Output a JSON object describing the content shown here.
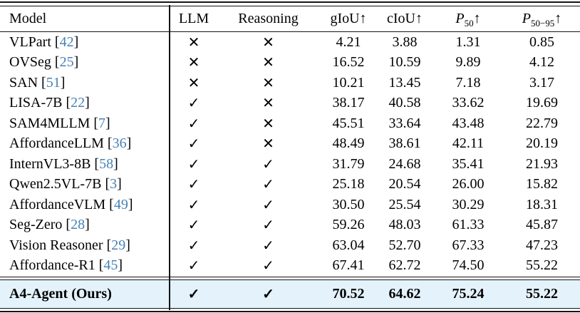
{
  "table": {
    "columns": [
      {
        "key": "model",
        "label": "Model"
      },
      {
        "key": "llm",
        "label": "LLM"
      },
      {
        "key": "reasoning",
        "label": "Reasoning"
      },
      {
        "key": "giou",
        "label": "gIoU",
        "arrow": "↑"
      },
      {
        "key": "ciou",
        "label": "cIoU",
        "arrow": "↑"
      },
      {
        "key": "p50",
        "label": "P",
        "sub": "50",
        "italic": true,
        "arrow": "↑"
      },
      {
        "key": "p5095",
        "label": "P",
        "sub": "50−95",
        "italic": true,
        "arrow": "↑"
      }
    ],
    "icons": {
      "check": "✓",
      "cross": "✕"
    },
    "colors": {
      "citation": "#4682b4",
      "highlight": "#e4f2fb",
      "rule": "#141414"
    },
    "rows": [
      {
        "model": "VLPart",
        "cite": "42",
        "llm": "cross",
        "reasoning": "cross",
        "giou": "4.21",
        "ciou": "3.88",
        "p50": "1.31",
        "p5095": "0.85"
      },
      {
        "model": "OVSeg",
        "cite": "25",
        "llm": "cross",
        "reasoning": "cross",
        "giou": "16.52",
        "ciou": "10.59",
        "p50": "9.89",
        "p5095": "4.12"
      },
      {
        "model": "SAN",
        "cite": "51",
        "llm": "cross",
        "reasoning": "cross",
        "giou": "10.21",
        "ciou": "13.45",
        "p50": "7.18",
        "p5095": "3.17"
      },
      {
        "model": "LISA-7B",
        "cite": "22",
        "llm": "check",
        "reasoning": "cross",
        "giou": "38.17",
        "ciou": "40.58",
        "p50": "33.62",
        "p5095": "19.69"
      },
      {
        "model": "SAM4MLLM",
        "cite": "7",
        "llm": "check",
        "reasoning": "cross",
        "giou": "45.51",
        "ciou": "33.64",
        "p50": "43.48",
        "p5095": "22.79"
      },
      {
        "model": "AffordanceLLM",
        "cite": "36",
        "llm": "check",
        "reasoning": "cross",
        "giou": "48.49",
        "ciou": "38.61",
        "p50": "42.11",
        "p5095": "20.19"
      },
      {
        "model": "InternVL3-8B",
        "cite": "58",
        "llm": "check",
        "reasoning": "check",
        "giou": "31.79",
        "ciou": "24.68",
        "p50": "35.41",
        "p5095": "21.93"
      },
      {
        "model": "Qwen2.5VL-7B",
        "cite": "3",
        "llm": "check",
        "reasoning": "check",
        "giou": "25.18",
        "ciou": "20.54",
        "p50": "26.00",
        "p5095": "15.82"
      },
      {
        "model": "AffordanceVLM",
        "cite": "49",
        "llm": "check",
        "reasoning": "check",
        "giou": "30.50",
        "ciou": "25.54",
        "p50": "30.29",
        "p5095": "18.31"
      },
      {
        "model": "Seg-Zero",
        "cite": "28",
        "llm": "check",
        "reasoning": "check",
        "giou": "59.26",
        "ciou": "48.03",
        "p50": "61.33",
        "p5095": "45.87"
      },
      {
        "model": "Vision Reasoner",
        "cite": "29",
        "llm": "check",
        "reasoning": "check",
        "giou": "63.04",
        "ciou": "52.70",
        "p50": "67.33",
        "p5095": "47.23"
      },
      {
        "model": "Affordance-R1",
        "cite": "45",
        "llm": "check",
        "reasoning": "check",
        "giou": "67.41",
        "ciou": "62.72",
        "p50": "74.50",
        "p5095": "55.22"
      },
      {
        "model": "A4-Agent (Ours)",
        "cite": null,
        "llm": "check",
        "reasoning": "check",
        "giou": "70.52",
        "ciou": "64.62",
        "p50": "75.24",
        "p5095": "55.22",
        "highlight": true
      }
    ]
  }
}
